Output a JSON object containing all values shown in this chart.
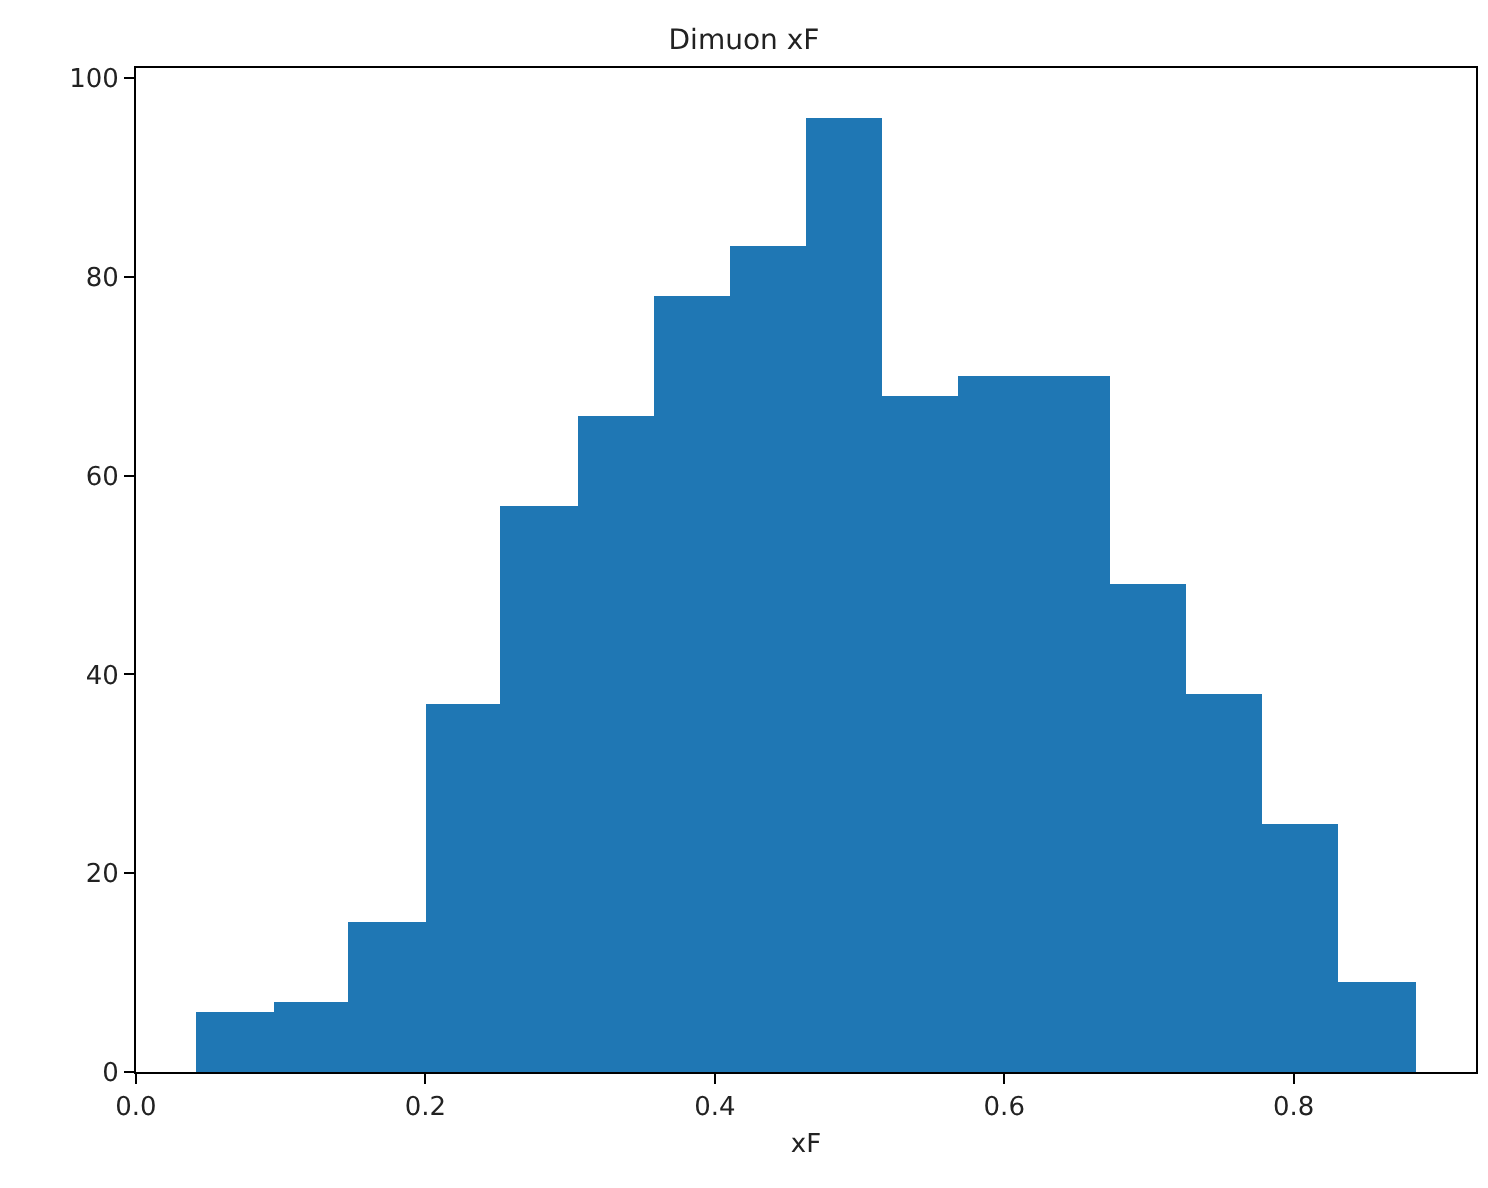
{
  "chart_data": {
    "type": "histogram",
    "title": "Dimuon xF",
    "xlabel": "xF",
    "bins": [
      0.042,
      0.095,
      0.147,
      0.2,
      0.252,
      0.305,
      0.358,
      0.41,
      0.463,
      0.515,
      0.568,
      0.621,
      0.673,
      0.726,
      0.778,
      0.831,
      0.884
    ],
    "values": [
      6,
      7,
      15,
      37,
      57,
      66,
      78,
      83,
      96,
      68,
      70,
      70,
      49,
      38,
      25,
      9
    ],
    "color": "#1f77b4",
    "xlim": [
      0,
      0.926
    ],
    "xticks": [
      {
        "value": 0,
        "label": "0.0"
      },
      0.2,
      0.4,
      0.6,
      0.8
    ],
    "ylim": [
      0,
      101
    ],
    "yticks": [
      0,
      20,
      40,
      60,
      80,
      100
    ]
  }
}
